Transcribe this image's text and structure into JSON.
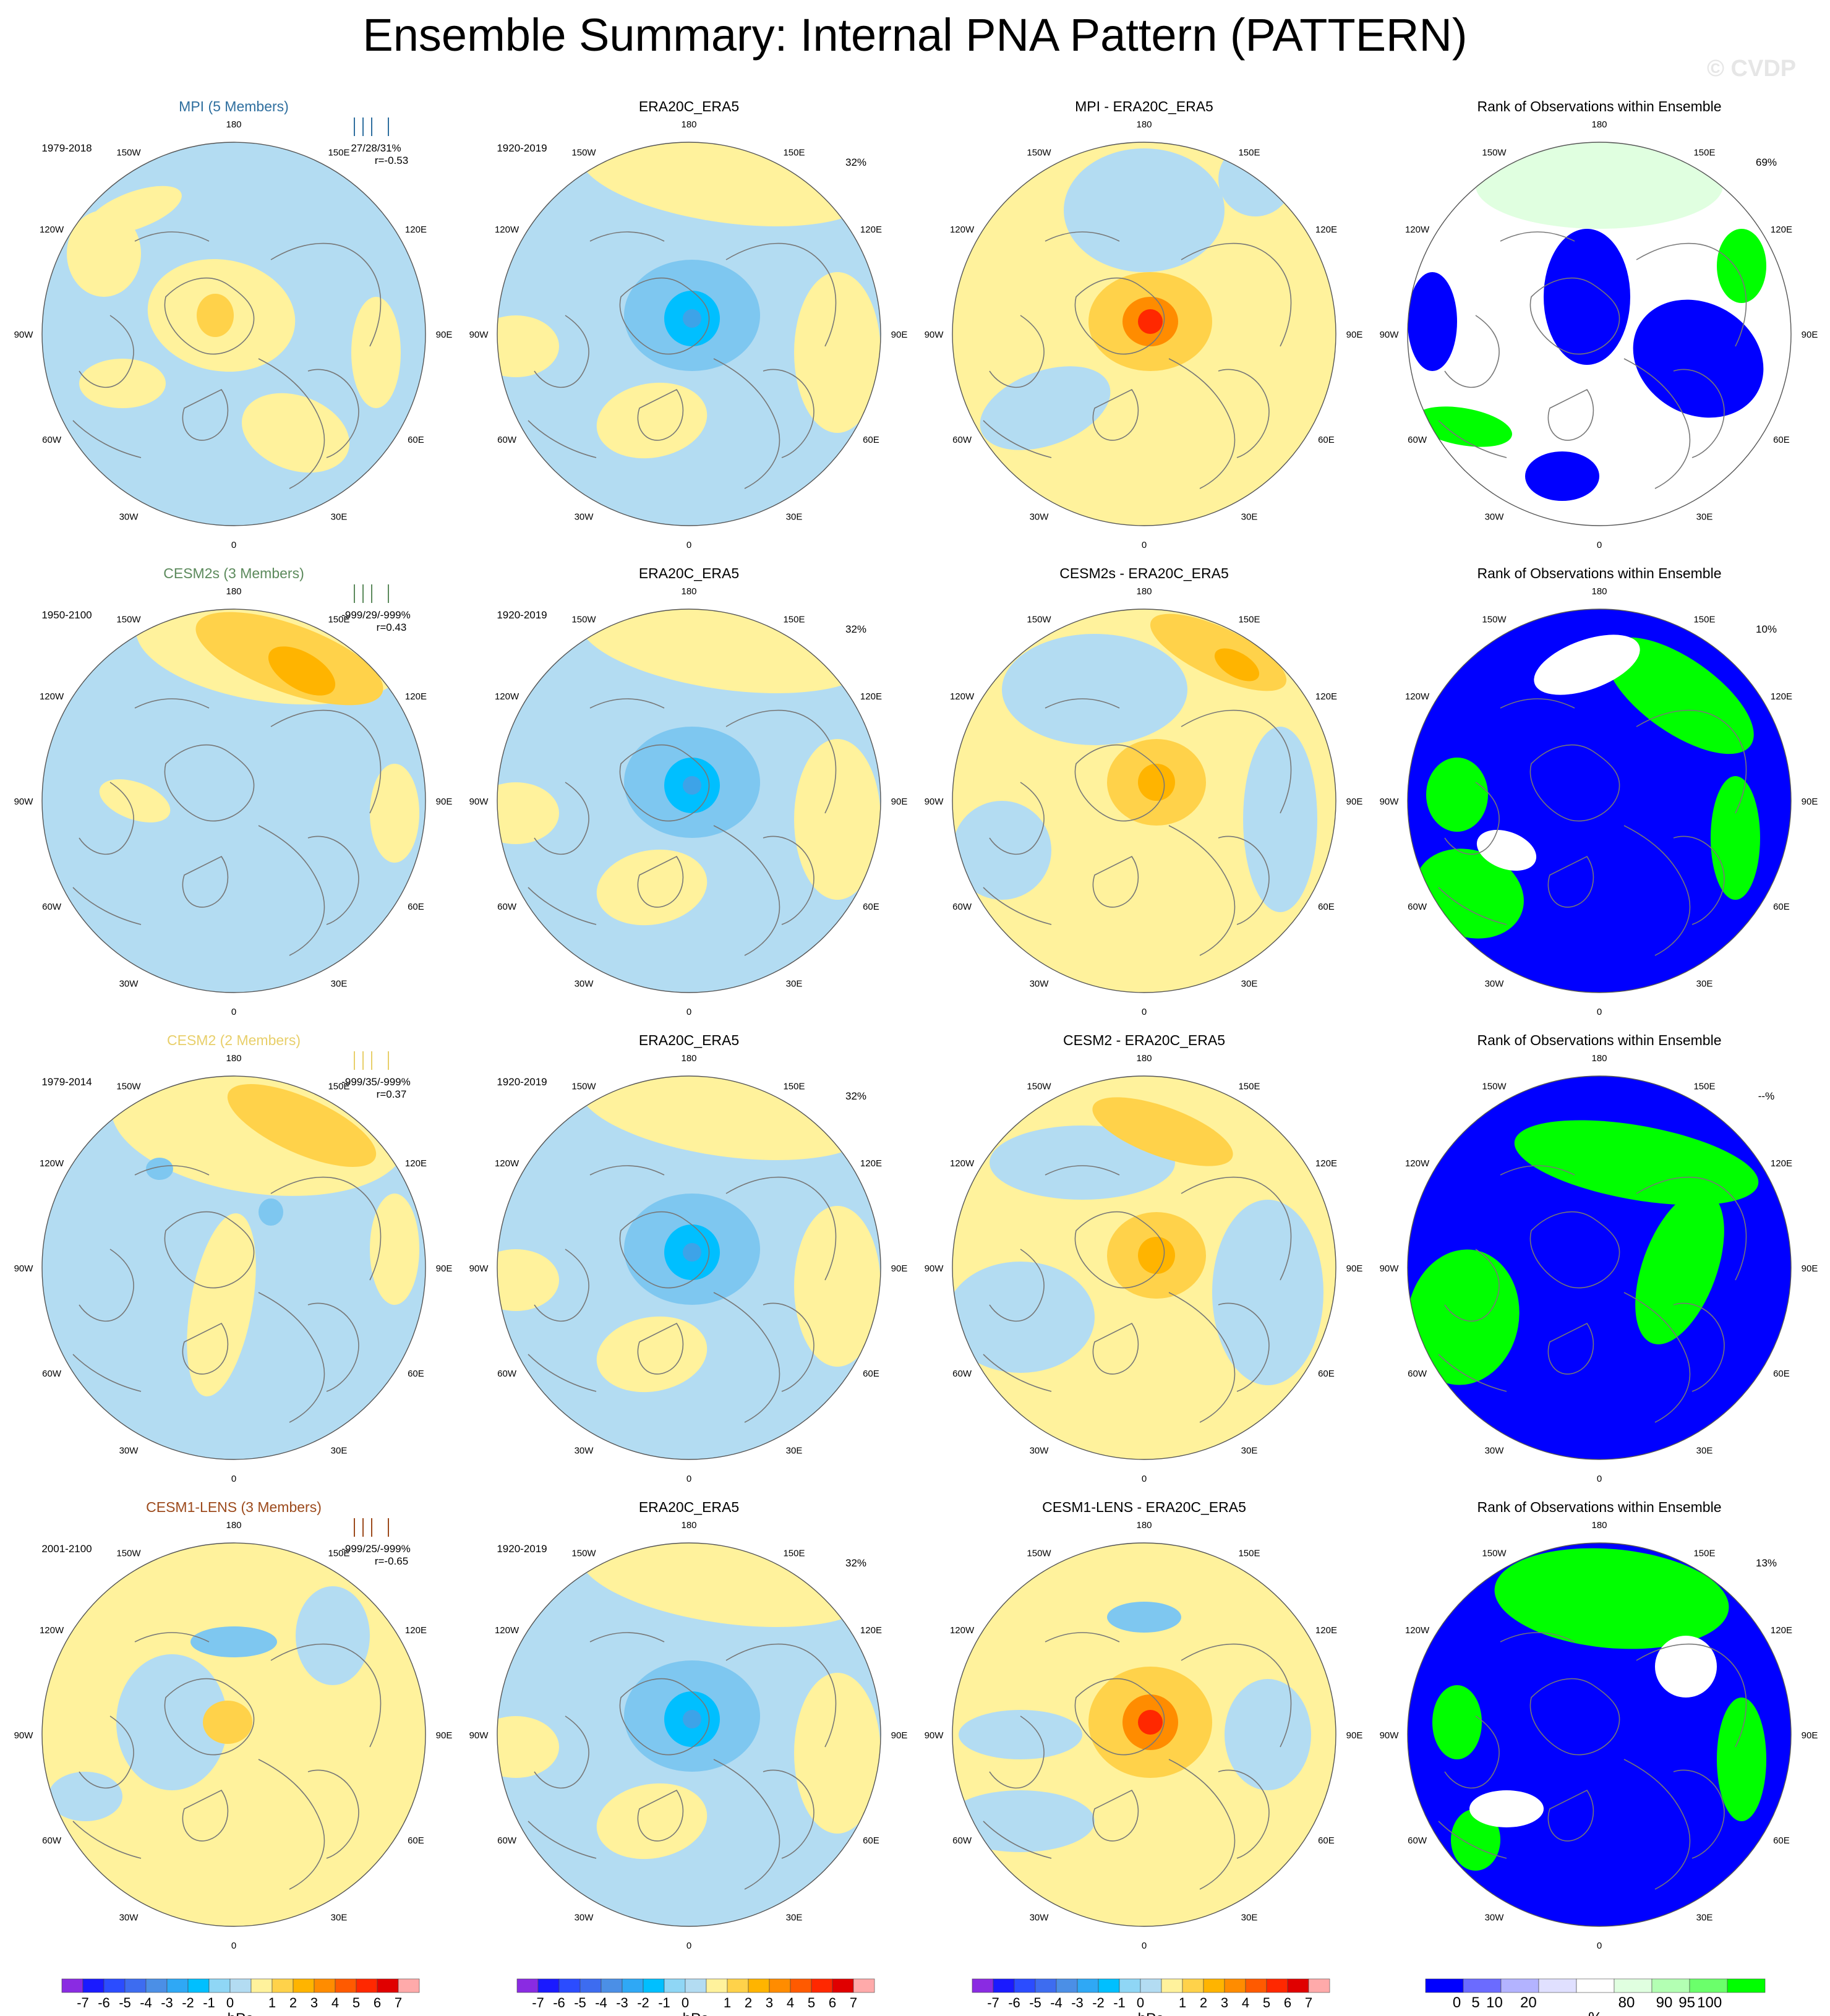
{
  "title": "Ensemble Summary: Internal PNA Pattern (PATTERN)",
  "watermark": "© CVDP",
  "colors": {
    "ocean_blue": "#b3dcf2",
    "land_yellow": "#fff29c",
    "rank_blue": "#0000ff",
    "rank_green": "#00ff00",
    "rank_palegreen": "#e0ffe0",
    "mpi_title": "#2f6f9f",
    "cesm2s_title": "#5c8a5c",
    "cesm2_title": "#e8cf6a",
    "cesm1_title": "#9c4a1c"
  },
  "lon_labels": [
    {
      "text": "180",
      "deg": 180
    },
    {
      "text": "150E",
      "deg": 150
    },
    {
      "text": "120E",
      "deg": 120
    },
    {
      "text": "90E",
      "deg": 90
    },
    {
      "text": "60E",
      "deg": 60
    },
    {
      "text": "30E",
      "deg": 30
    },
    {
      "text": "0",
      "deg": 0
    },
    {
      "text": "30W",
      "deg": -30
    },
    {
      "text": "60W",
      "deg": -60
    },
    {
      "text": "90W",
      "deg": -90
    },
    {
      "text": "120W",
      "deg": -120
    },
    {
      "text": "150W",
      "deg": -150
    }
  ],
  "rows": [
    {
      "model": {
        "title": "MPI (5 Members)",
        "period": "1979-2018",
        "stats": "27/28/31%",
        "corr": "r=-0.53",
        "color_key": "mpi_title"
      },
      "obs": {
        "title": "ERA20C_ERA5",
        "period": "1920-2019",
        "pct": "32%"
      },
      "diff": {
        "title": "MPI - ERA20C_ERA5"
      },
      "rank": {
        "title": "Rank of Observations within Ensemble",
        "pct": "69%"
      }
    },
    {
      "model": {
        "title": "CESM2s (3 Members)",
        "period": "1950-2100",
        "stats": "-999/29/-999%",
        "corr": "r=0.43",
        "color_key": "cesm2s_title"
      },
      "obs": {
        "title": "ERA20C_ERA5",
        "period": "1920-2019",
        "pct": "32%"
      },
      "diff": {
        "title": "CESM2s - ERA20C_ERA5"
      },
      "rank": {
        "title": "Rank of Observations within Ensemble",
        "pct": "10%"
      }
    },
    {
      "model": {
        "title": "CESM2 (2 Members)",
        "period": "1979-2014",
        "stats": "-999/35/-999%",
        "corr": "r=0.37",
        "color_key": "cesm2_title"
      },
      "obs": {
        "title": "ERA20C_ERA5",
        "period": "1920-2019",
        "pct": "32%"
      },
      "diff": {
        "title": "CESM2 - ERA20C_ERA5"
      },
      "rank": {
        "title": "Rank of Observations within Ensemble",
        "pct": "--%"
      }
    },
    {
      "model": {
        "title": "CESM1-LENS (3 Members)",
        "period": "2001-2100",
        "stats": "-999/25/-999%",
        "corr": "r=-0.65",
        "color_key": "cesm1_title"
      },
      "obs": {
        "title": "ERA20C_ERA5",
        "period": "1920-2019",
        "pct": "32%"
      },
      "diff": {
        "title": "CESM1-LENS - ERA20C_ERA5"
      },
      "rank": {
        "title": "Rank of Observations within Ensemble",
        "pct": "13%"
      }
    }
  ],
  "chart_data": {
    "type": "heatmap",
    "projection": "north polar stereographic",
    "panels": [
      {
        "row": 1,
        "col": 1,
        "title": "MPI (5 Members)",
        "subtitle_left": "1979-2018",
        "subtitle_right": "27/28/31%",
        "corr": "r=-0.53"
      },
      {
        "row": 1,
        "col": 2,
        "title": "ERA20C_ERA5",
        "subtitle_left": "1920-2019",
        "subtitle_right": "32%"
      },
      {
        "row": 1,
        "col": 3,
        "title": "MPI - ERA20C_ERA5"
      },
      {
        "row": 1,
        "col": 4,
        "title": "Rank of Observations within Ensemble",
        "subtitle_right": "69%"
      },
      {
        "row": 2,
        "col": 1,
        "title": "CESM2s (3 Members)",
        "subtitle_left": "1950-2100",
        "subtitle_right": "-999/29/-999%",
        "corr": "r=0.43"
      },
      {
        "row": 2,
        "col": 2,
        "title": "ERA20C_ERA5",
        "subtitle_left": "1920-2019",
        "subtitle_right": "32%"
      },
      {
        "row": 2,
        "col": 3,
        "title": "CESM2s - ERA20C_ERA5"
      },
      {
        "row": 2,
        "col": 4,
        "title": "Rank of Observations within Ensemble",
        "subtitle_right": "10%"
      },
      {
        "row": 3,
        "col": 1,
        "title": "CESM2 (2 Members)",
        "subtitle_left": "1979-2014",
        "subtitle_right": "-999/35/-999%",
        "corr": "r=0.37"
      },
      {
        "row": 3,
        "col": 2,
        "title": "ERA20C_ERA5",
        "subtitle_left": "1920-2019",
        "subtitle_right": "32%"
      },
      {
        "row": 3,
        "col": 3,
        "title": "CESM2 - ERA20C_ERA5"
      },
      {
        "row": 3,
        "col": 4,
        "title": "Rank of Observations within Ensemble",
        "subtitle_right": "--%"
      },
      {
        "row": 4,
        "col": 1,
        "title": "CESM1-LENS (3 Members)",
        "subtitle_left": "2001-2100",
        "subtitle_right": "-999/25/-999%",
        "corr": "r=-0.65"
      },
      {
        "row": 4,
        "col": 2,
        "title": "ERA20C_ERA5",
        "subtitle_left": "1920-2019",
        "subtitle_right": "32%"
      },
      {
        "row": 4,
        "col": 3,
        "title": "CESM1-LENS - ERA20C_ERA5"
      },
      {
        "row": 4,
        "col": 4,
        "title": "Rank of Observations within Ensemble",
        "subtitle_right": "13%"
      }
    ],
    "colorbar_hpa": {
      "label": "hPa",
      "ticks": [
        "-7",
        "-6",
        "-5",
        "-4",
        "-3",
        "-2",
        "-1",
        "0",
        "1",
        "2",
        "3",
        "4",
        "5",
        "6",
        "7"
      ],
      "colors": [
        "#8a2be2",
        "#1a1aff",
        "#2b4cff",
        "#3d6cf0",
        "#4b8fe6",
        "#2fa8f5",
        "#00bfff",
        "#8fd6f5",
        "#b3dcf2",
        "#fff29c",
        "#ffd24a",
        "#ffb400",
        "#ff8c00",
        "#ff5a00",
        "#ff2800",
        "#e00000",
        "#ffaaaa"
      ]
    },
    "colorbar_rank": {
      "label": "%",
      "ticks": [
        "0",
        "5",
        "10",
        "20",
        "80",
        "90",
        "95",
        "100"
      ],
      "colors": [
        "#0000ff",
        "#6b6bff",
        "#b3b3ff",
        "#e0e0ff",
        "#ffffff",
        "#e0ffe0",
        "#b3ffb3",
        "#6bff6b",
        "#00ff00"
      ]
    }
  }
}
